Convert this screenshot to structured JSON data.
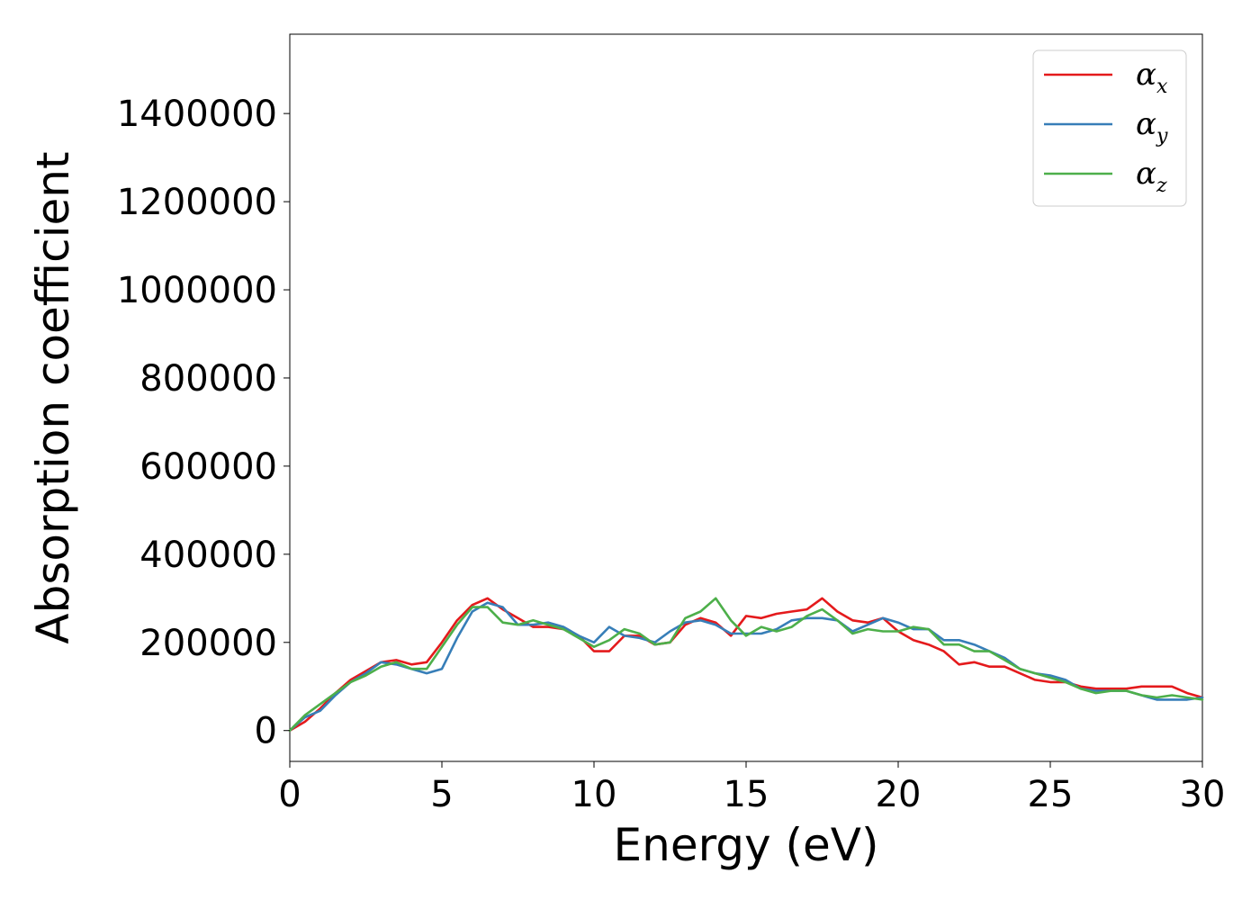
{
  "chart_data": {
    "type": "line",
    "title": "",
    "xlabel": "Energy (eV)",
    "ylabel": "Absorption coefficient",
    "xlim": [
      0,
      30
    ],
    "ylim": [
      -70000,
      1580000
    ],
    "xticks": [
      "0",
      "5",
      "10",
      "15",
      "20",
      "25",
      "30"
    ],
    "xtick_values": [
      0,
      5,
      10,
      15,
      20,
      25,
      30
    ],
    "yticks": [
      "0",
      "200000",
      "400000",
      "600000",
      "800000",
      "1000000",
      "1200000",
      "1400000"
    ],
    "ytick_values": [
      0,
      200000,
      400000,
      600000,
      800000,
      1000000,
      1200000,
      1400000
    ],
    "grid": false,
    "legend": {
      "placement": "top-right"
    },
    "x": [
      0,
      0.5,
      1,
      1.5,
      2,
      2.5,
      3,
      3.5,
      4,
      4.5,
      5,
      5.5,
      6,
      6.5,
      7,
      7.5,
      8,
      8.5,
      9,
      9.5,
      10,
      10.5,
      11,
      11.5,
      12,
      12.5,
      13,
      13.5,
      14,
      14.5,
      15,
      15.5,
      16,
      16.5,
      17,
      17.5,
      18,
      18.5,
      19,
      19.5,
      20,
      20.5,
      21,
      21.5,
      22,
      22.5,
      23,
      23.5,
      24,
      24.5,
      25,
      25.5,
      26,
      26.5,
      27,
      27.5,
      28,
      28.5,
      29,
      29.5,
      30
    ],
    "series": [
      {
        "name": "α",
        "subscript": "x",
        "color": "#e41a1c",
        "values": [
          0,
          20000,
          50000,
          85000,
          115000,
          135000,
          155000,
          160000,
          150000,
          155000,
          200000,
          250000,
          285000,
          300000,
          275000,
          255000,
          235000,
          235000,
          230000,
          215000,
          180000,
          180000,
          215000,
          215000,
          195000,
          200000,
          240000,
          255000,
          245000,
          215000,
          260000,
          255000,
          265000,
          270000,
          275000,
          300000,
          270000,
          250000,
          245000,
          255000,
          225000,
          205000,
          195000,
          180000,
          150000,
          155000,
          145000,
          145000,
          130000,
          115000,
          110000,
          110000,
          100000,
          95000,
          95000,
          95000,
          100000,
          100000,
          100000,
          85000,
          75000
        ]
      },
      {
        "name": "α",
        "subscript": "y",
        "color": "#377eb8",
        "values": [
          0,
          30000,
          45000,
          80000,
          110000,
          130000,
          155000,
          150000,
          140000,
          130000,
          140000,
          210000,
          270000,
          290000,
          280000,
          240000,
          240000,
          245000,
          235000,
          215000,
          200000,
          235000,
          215000,
          210000,
          200000,
          225000,
          245000,
          250000,
          240000,
          220000,
          220000,
          220000,
          230000,
          250000,
          255000,
          255000,
          250000,
          225000,
          240000,
          255000,
          245000,
          230000,
          230000,
          205000,
          205000,
          195000,
          180000,
          165000,
          140000,
          130000,
          125000,
          115000,
          95000,
          90000,
          90000,
          90000,
          80000,
          70000,
          70000,
          70000,
          75000
        ]
      },
      {
        "name": "α",
        "subscript": "z",
        "color": "#4daf4a",
        "values": [
          0,
          35000,
          60000,
          85000,
          110000,
          125000,
          145000,
          155000,
          140000,
          140000,
          190000,
          240000,
          280000,
          280000,
          245000,
          240000,
          250000,
          240000,
          230000,
          210000,
          190000,
          205000,
          230000,
          220000,
          195000,
          200000,
          255000,
          270000,
          300000,
          250000,
          215000,
          235000,
          225000,
          235000,
          260000,
          275000,
          250000,
          220000,
          230000,
          225000,
          225000,
          235000,
          230000,
          195000,
          195000,
          180000,
          180000,
          160000,
          140000,
          130000,
          120000,
          110000,
          95000,
          85000,
          90000,
          90000,
          80000,
          75000,
          80000,
          75000,
          70000
        ]
      }
    ]
  }
}
